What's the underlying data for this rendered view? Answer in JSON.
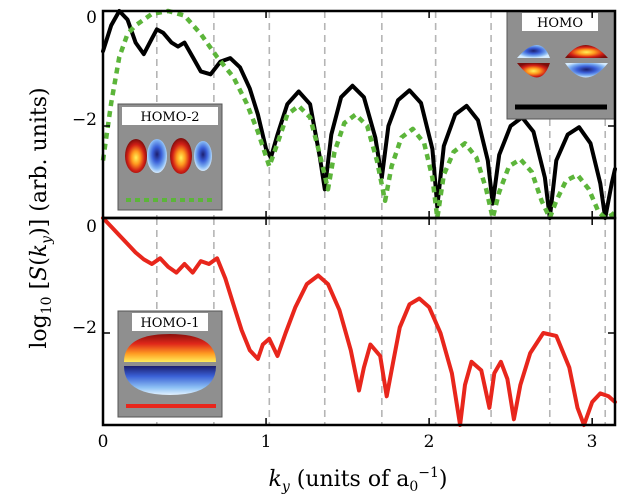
{
  "chart_data": {
    "type": "line",
    "xlabel": "k_y (units of a_0^-1)",
    "ylabel": "log10[S(k_y)] (arb. units)",
    "xlim": [
      0,
      3.14
    ],
    "x_ticks": [
      0,
      1,
      2,
      3
    ],
    "grid": "vertical dashed gray lines at minima",
    "grid_x": [
      0.33,
      0.68,
      1.02,
      1.36,
      1.71,
      2.04,
      2.38,
      2.74,
      3.08
    ],
    "panels": [
      {
        "ylim": [
          -3.6,
          0
        ],
        "y_ticks": [
          0,
          -2
        ],
        "series": [
          {
            "name": "HOMO",
            "color": "#000000",
            "style": "solid",
            "x": [
              0,
              0.05,
              0.1,
              0.15,
              0.2,
              0.25,
              0.3,
              0.33,
              0.37,
              0.42,
              0.46,
              0.5,
              0.55,
              0.6,
              0.66,
              0.72,
              0.78,
              0.84,
              0.9,
              0.95,
              1.0,
              1.03,
              1.07,
              1.13,
              1.2,
              1.27,
              1.33,
              1.36,
              1.4,
              1.46,
              1.53,
              1.6,
              1.67,
              1.71,
              1.75,
              1.81,
              1.88,
              1.95,
              2.02,
              2.05,
              2.09,
              2.16,
              2.23,
              2.3,
              2.36,
              2.39,
              2.43,
              2.5,
              2.57,
              2.64,
              2.71,
              2.74,
              2.78,
              2.85,
              2.92,
              2.99,
              3.05,
              3.08,
              3.12,
              3.14
            ],
            "y": [
              -0.7,
              -0.25,
              0.0,
              -0.15,
              -0.55,
              -0.75,
              -0.48,
              -0.32,
              -0.38,
              -0.55,
              -0.62,
              -0.55,
              -0.8,
              -1.05,
              -1.1,
              -0.88,
              -0.82,
              -0.98,
              -1.35,
              -1.8,
              -2.4,
              -2.55,
              -2.15,
              -1.62,
              -1.4,
              -1.62,
              -2.55,
              -3.1,
              -2.15,
              -1.5,
              -1.3,
              -1.5,
              -2.2,
              -2.9,
              -2.0,
              -1.55,
              -1.38,
              -1.6,
              -2.4,
              -3.4,
              -2.35,
              -1.8,
              -1.65,
              -1.9,
              -2.6,
              -3.35,
              -2.5,
              -2.0,
              -1.85,
              -2.1,
              -2.9,
              -3.6,
              -2.6,
              -2.15,
              -2.02,
              -2.3,
              -3.0,
              -3.6,
              -3.0,
              -2.75
            ]
          },
          {
            "name": "HOMO-2",
            "color": "#5cb53a",
            "style": "dotted",
            "x": [
              0,
              0.05,
              0.1,
              0.15,
              0.2,
              0.3,
              0.4,
              0.5,
              0.6,
              0.7,
              0.8,
              0.88,
              0.95,
              1.02,
              1.07,
              1.13,
              1.2,
              1.27,
              1.33,
              1.38,
              1.42,
              1.48,
              1.55,
              1.62,
              1.68,
              1.73,
              1.77,
              1.83,
              1.9,
              1.97,
              2.02,
              2.05,
              2.09,
              2.15,
              2.22,
              2.29,
              2.35,
              2.39,
              2.43,
              2.49,
              2.56,
              2.63,
              2.69,
              2.74,
              2.78,
              2.84,
              2.91,
              2.98,
              3.04,
              3.08,
              3.12,
              3.14
            ],
            "y": [
              -2.6,
              -1.6,
              -0.8,
              -0.4,
              -0.25,
              -0.05,
              0.0,
              -0.08,
              -0.4,
              -0.8,
              -1.15,
              -1.6,
              -2.1,
              -2.7,
              -2.3,
              -1.8,
              -1.65,
              -1.85,
              -2.5,
              -3.1,
              -2.45,
              -1.95,
              -1.8,
              -2.0,
              -2.6,
              -3.3,
              -2.7,
              -2.2,
              -2.05,
              -2.3,
              -2.9,
              -3.6,
              -2.85,
              -2.45,
              -2.3,
              -2.55,
              -3.1,
              -3.6,
              -3.15,
              -2.7,
              -2.58,
              -2.8,
              -3.3,
              -3.6,
              -3.3,
              -2.95,
              -2.85,
              -3.1,
              -3.5,
              -3.6,
              -3.55,
              -3.5
            ]
          }
        ],
        "insets": [
          {
            "title": "HOMO"
          },
          {
            "title": "HOMO-2"
          }
        ]
      },
      {
        "ylim": [
          -3.6,
          0
        ],
        "y_ticks": [
          0,
          -2
        ],
        "series": [
          {
            "name": "HOMO-1",
            "color": "#e8261c",
            "style": "solid",
            "x": [
              0,
              0.05,
              0.1,
              0.15,
              0.2,
              0.25,
              0.3,
              0.35,
              0.4,
              0.45,
              0.5,
              0.55,
              0.6,
              0.65,
              0.7,
              0.75,
              0.8,
              0.85,
              0.9,
              0.95,
              0.98,
              1.02,
              1.07,
              1.12,
              1.18,
              1.25,
              1.32,
              1.38,
              1.45,
              1.52,
              1.57,
              1.6,
              1.64,
              1.7,
              1.74,
              1.78,
              1.82,
              1.88,
              1.94,
              2.0,
              2.07,
              2.14,
              2.19,
              2.22,
              2.26,
              2.32,
              2.37,
              2.4,
              2.44,
              2.48,
              2.52,
              2.56,
              2.62,
              2.7,
              2.78,
              2.86,
              2.91,
              2.95,
              3.0,
              3.05,
              3.1,
              3.14
            ],
            "y": [
              0.0,
              -0.15,
              -0.3,
              -0.45,
              -0.6,
              -0.72,
              -0.8,
              -0.7,
              -0.85,
              -0.95,
              -0.8,
              -0.95,
              -0.75,
              -0.8,
              -0.7,
              -1.05,
              -1.5,
              -1.95,
              -2.3,
              -2.45,
              -2.2,
              -2.1,
              -2.4,
              -2.0,
              -1.55,
              -1.15,
              -1.0,
              -1.15,
              -1.6,
              -2.3,
              -3.0,
              -2.6,
              -2.2,
              -2.4,
              -3.1,
              -2.5,
              -1.9,
              -1.5,
              -1.4,
              -1.55,
              -2.0,
              -2.7,
              -3.6,
              -2.9,
              -2.5,
              -2.65,
              -3.3,
              -2.7,
              -2.5,
              -2.8,
              -3.5,
              -2.9,
              -2.35,
              -2.0,
              -2.05,
              -2.6,
              -3.3,
              -3.6,
              -3.2,
              -3.05,
              -3.1,
              -3.2
            ]
          }
        ],
        "insets": [
          {
            "title": "HOMO-1"
          }
        ]
      }
    ]
  }
}
